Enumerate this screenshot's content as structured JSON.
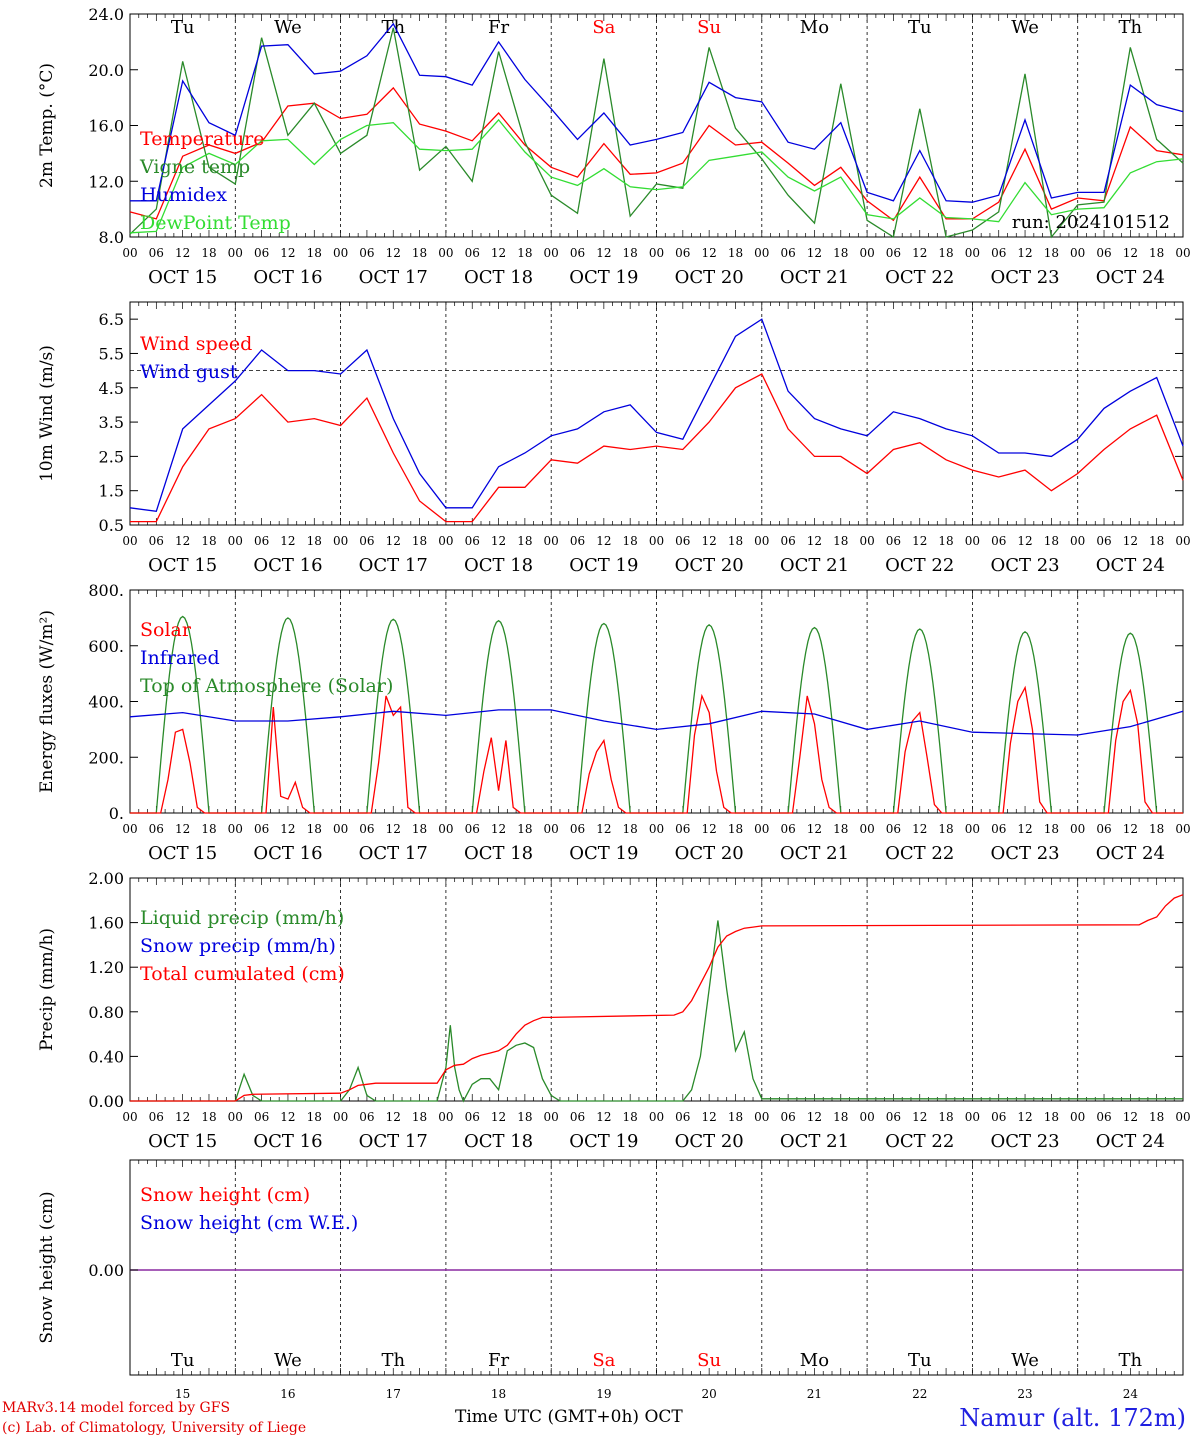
{
  "chart_data": [
    {
      "type": "line",
      "ylabel": "2m Temp. (°C)",
      "ylim": [
        8,
        24
      ],
      "yticks": [
        "8.0",
        "12.0",
        "16.0",
        "20.0",
        "24.0"
      ],
      "weekday_labels": [
        "Tu",
        "We",
        "Th",
        "Fr",
        "Sa",
        "Su",
        "Mo",
        "Tu",
        "We",
        "Th"
      ],
      "annotation": "run: 2024101512",
      "grid": "vertical dotted day separators",
      "legend": "top-left",
      "series": [
        {
          "name": "Temperature",
          "color": "#ff0000",
          "x": [
            0,
            6,
            12,
            18,
            24,
            30,
            36,
            42,
            48,
            54,
            60,
            66,
            72,
            78,
            84,
            90,
            96,
            102,
            108,
            114,
            120,
            126,
            132,
            138,
            144,
            150,
            156,
            162,
            168,
            174,
            180,
            186,
            192,
            198,
            204,
            210,
            216,
            222,
            228,
            234,
            240
          ],
          "values": [
            9.8,
            9.3,
            13.8,
            14.6,
            14.0,
            14.8,
            17.4,
            17.6,
            16.5,
            16.8,
            18.7,
            16.1,
            15.6,
            14.9,
            16.9,
            14.6,
            13.0,
            12.3,
            14.7,
            12.5,
            12.6,
            13.3,
            16.0,
            14.6,
            14.8,
            13.3,
            11.7,
            13.0,
            10.6,
            9.2,
            12.3,
            9.3,
            9.3,
            10.5,
            14.3,
            10.0,
            10.8,
            10.6,
            15.9,
            14.2,
            13.9
          ]
        },
        {
          "name": "Vigne temp",
          "color": "#2a8a2a",
          "x": [
            0,
            6,
            12,
            18,
            24,
            30,
            36,
            42,
            48,
            54,
            60,
            66,
            72,
            78,
            84,
            90,
            96,
            102,
            108,
            114,
            120,
            126,
            132,
            138,
            144,
            150,
            156,
            162,
            168,
            174,
            180,
            186,
            192,
            198,
            204,
            210,
            216,
            222,
            228,
            234,
            240
          ],
          "values": [
            8.2,
            10.0,
            20.6,
            13.0,
            11.8,
            22.3,
            15.3,
            17.6,
            14.0,
            15.3,
            23.0,
            12.8,
            14.5,
            12.0,
            21.3,
            14.8,
            11.0,
            9.7,
            20.8,
            9.5,
            11.8,
            11.5,
            21.6,
            15.8,
            13.6,
            11.0,
            9.0,
            19.0,
            9.2,
            7.0,
            17.2,
            7.0,
            8.5,
            9.8,
            19.7,
            7.8,
            10.3,
            10.5,
            21.6,
            15.0,
            13.3
          ]
        },
        {
          "name": "Humidex",
          "color": "#0000dd",
          "x": [
            0,
            6,
            12,
            18,
            24,
            30,
            36,
            42,
            48,
            54,
            60,
            66,
            72,
            78,
            84,
            90,
            96,
            102,
            108,
            114,
            120,
            126,
            132,
            138,
            144,
            150,
            156,
            162,
            168,
            174,
            180,
            186,
            192,
            198,
            204,
            210,
            216,
            222,
            228,
            234,
            240
          ],
          "values": [
            10.6,
            10.6,
            19.2,
            16.2,
            15.3,
            21.7,
            21.8,
            19.7,
            19.9,
            21.0,
            23.3,
            19.6,
            19.5,
            18.9,
            22.0,
            19.3,
            17.2,
            15.0,
            16.9,
            14.6,
            15.0,
            15.5,
            19.1,
            18.0,
            17.7,
            14.8,
            14.3,
            16.2,
            11.2,
            10.6,
            14.2,
            10.6,
            10.5,
            11.0,
            16.4,
            10.8,
            11.2,
            11.2,
            18.9,
            17.5,
            17.0
          ]
        },
        {
          "name": "DewPoint Temp",
          "color": "#33dd33",
          "x": [
            0,
            6,
            12,
            18,
            24,
            30,
            36,
            42,
            48,
            54,
            60,
            66,
            72,
            78,
            84,
            90,
            96,
            102,
            108,
            114,
            120,
            126,
            132,
            138,
            144,
            150,
            156,
            162,
            168,
            174,
            180,
            186,
            192,
            198,
            204,
            210,
            216,
            222,
            228,
            234,
            240
          ],
          "values": [
            8.3,
            8.4,
            13.0,
            14.0,
            13.2,
            14.9,
            15.0,
            13.2,
            15.0,
            16.0,
            16.2,
            14.3,
            14.2,
            14.3,
            16.4,
            14.1,
            12.3,
            11.7,
            12.9,
            11.6,
            11.4,
            11.6,
            13.5,
            13.8,
            14.1,
            12.3,
            11.3,
            12.3,
            9.6,
            9.3,
            10.8,
            9.4,
            9.3,
            9.1,
            11.9,
            9.6,
            10.0,
            10.1,
            12.6,
            13.4,
            13.6
          ]
        }
      ]
    },
    {
      "type": "line",
      "ylabel": "10m Wind (m/s)",
      "ylim": [
        0.5,
        7
      ],
      "yticks": [
        "0.5",
        "1.5",
        "2.5",
        "3.5",
        "4.5",
        "5.5",
        "6.5"
      ],
      "reference_line": 5,
      "legend": "top-left",
      "series": [
        {
          "name": "Wind speed",
          "color": "#ff0000",
          "x": [
            0,
            6,
            12,
            18,
            24,
            30,
            36,
            42,
            48,
            54,
            60,
            66,
            72,
            78,
            84,
            90,
            96,
            102,
            108,
            114,
            120,
            126,
            132,
            138,
            144,
            150,
            156,
            162,
            168,
            174,
            180,
            186,
            192,
            198,
            204,
            210,
            216,
            222,
            228,
            234,
            240
          ],
          "values": [
            0.6,
            0.6,
            2.2,
            3.3,
            3.6,
            4.3,
            3.5,
            3.6,
            3.4,
            4.2,
            2.6,
            1.2,
            0.6,
            0.6,
            1.6,
            1.6,
            2.4,
            2.3,
            2.8,
            2.7,
            2.8,
            2.7,
            3.5,
            4.5,
            4.9,
            3.3,
            2.5,
            2.5,
            2.0,
            2.7,
            2.9,
            2.4,
            2.1,
            1.9,
            2.1,
            1.5,
            2.0,
            2.7,
            3.3,
            3.7,
            1.8
          ]
        },
        {
          "name": "Wind gust",
          "color": "#0000dd",
          "x": [
            0,
            6,
            12,
            18,
            24,
            30,
            36,
            42,
            48,
            54,
            60,
            66,
            72,
            78,
            84,
            90,
            96,
            102,
            108,
            114,
            120,
            126,
            132,
            138,
            144,
            150,
            156,
            162,
            168,
            174,
            180,
            186,
            192,
            198,
            204,
            210,
            216,
            222,
            228,
            234,
            240
          ],
          "values": [
            1.0,
            0.9,
            3.3,
            4.0,
            4.7,
            5.6,
            5.0,
            5.0,
            4.9,
            5.6,
            3.6,
            2.0,
            1.0,
            1.0,
            2.2,
            2.6,
            3.1,
            3.3,
            3.8,
            4.0,
            3.2,
            3.0,
            4.5,
            6.0,
            6.5,
            4.4,
            3.6,
            3.3,
            3.1,
            3.8,
            3.6,
            3.3,
            3.1,
            2.6,
            2.6,
            2.5,
            3.0,
            3.9,
            4.4,
            4.8,
            2.8
          ]
        }
      ]
    },
    {
      "type": "line",
      "ylabel": "Energy fluxes (W/m²)",
      "ylim": [
        0,
        800
      ],
      "yticks": [
        "0.",
        "200.",
        "400.",
        "600.",
        "800."
      ],
      "legend": "top-left",
      "series": [
        {
          "name": "Solar",
          "color": "#ff0000",
          "peaks": [
            {
              "day": 0,
              "values": [
                0,
                120,
                290,
                300,
                180,
                20,
                0
              ]
            },
            {
              "day": 1,
              "values": [
                0,
                380,
                60,
                50,
                110,
                20,
                0
              ]
            },
            {
              "day": 2,
              "values": [
                0,
                180,
                420,
                350,
                380,
                20,
                0
              ]
            },
            {
              "day": 3,
              "values": [
                0,
                150,
                270,
                80,
                260,
                20,
                0
              ]
            },
            {
              "day": 4,
              "values": [
                0,
                140,
                220,
                260,
                120,
                20,
                0
              ]
            },
            {
              "day": 5,
              "values": [
                0,
                280,
                420,
                360,
                150,
                20,
                0
              ]
            },
            {
              "day": 6,
              "values": [
                0,
                200,
                420,
                320,
                120,
                20,
                0
              ]
            },
            {
              "day": 7,
              "values": [
                0,
                220,
                330,
                360,
                200,
                30,
                0
              ]
            },
            {
              "day": 8,
              "values": [
                0,
                250,
                400,
                450,
                300,
                40,
                0
              ]
            },
            {
              "day": 9,
              "values": [
                0,
                260,
                400,
                440,
                320,
                40,
                0
              ]
            }
          ]
        },
        {
          "name": "Infrared",
          "color": "#0000dd",
          "x": [
            0,
            12,
            24,
            36,
            48,
            60,
            72,
            84,
            96,
            108,
            120,
            132,
            144,
            156,
            168,
            180,
            192,
            204,
            216,
            228,
            240
          ],
          "values": [
            345,
            360,
            330,
            330,
            345,
            365,
            350,
            370,
            370,
            330,
            300,
            320,
            365,
            355,
            300,
            330,
            290,
            285,
            280,
            310,
            365
          ]
        },
        {
          "name": "Top of Atmosphere (Solar)",
          "color": "#2a8a2a",
          "peak_values": [
            705,
            700,
            695,
            690,
            680,
            675,
            665,
            660,
            650,
            645
          ]
        }
      ]
    },
    {
      "type": "line",
      "ylabel": "Precip (mm/h)",
      "ylim": [
        0,
        2
      ],
      "yticks": [
        "0.00",
        "0.40",
        "0.80",
        "1.20",
        "1.60",
        "2.00"
      ],
      "legend": "top-left",
      "series": [
        {
          "name": "Liquid precip (mm/h)",
          "color": "#2a8a2a",
          "x": [
            0,
            24,
            26,
            28,
            30,
            48,
            50,
            52,
            54,
            56,
            70,
            72,
            73,
            74,
            75,
            76,
            78,
            80,
            82,
            84,
            86,
            88,
            90,
            92,
            94,
            96,
            98,
            110,
            126,
            128,
            130,
            132,
            134,
            136,
            138,
            140,
            142,
            144,
            240
          ],
          "values": [
            0,
            0,
            0.24,
            0.05,
            0,
            0,
            0.1,
            0.3,
            0.05,
            0,
            0,
            0.3,
            0.68,
            0.3,
            0.1,
            0,
            0.15,
            0.2,
            0.2,
            0.1,
            0.45,
            0.5,
            0.52,
            0.48,
            0.2,
            0.05,
            0,
            0,
            0,
            0.1,
            0.4,
            1.0,
            1.62,
            1.0,
            0.45,
            0.62,
            0.2,
            0.02,
            0.02
          ]
        },
        {
          "name": "Snow precip (mm/h)",
          "color": "#0000dd",
          "values": [
            0
          ]
        },
        {
          "name": "Total cumulated (cm)",
          "color": "#ff0000",
          "x": [
            0,
            24,
            26,
            28,
            48,
            50,
            52,
            54,
            56,
            70,
            72,
            74,
            76,
            78,
            80,
            82,
            84,
            86,
            88,
            90,
            92,
            94,
            96,
            124,
            126,
            128,
            130,
            132,
            134,
            136,
            138,
            140,
            142,
            144,
            230,
            232,
            234,
            236,
            238,
            240
          ],
          "values": [
            0,
            0,
            0.05,
            0.06,
            0.07,
            0.1,
            0.14,
            0.15,
            0.16,
            0.16,
            0.28,
            0.32,
            0.33,
            0.38,
            0.41,
            0.43,
            0.45,
            0.5,
            0.6,
            0.68,
            0.72,
            0.75,
            0.75,
            0.77,
            0.8,
            0.9,
            1.05,
            1.2,
            1.38,
            1.48,
            1.52,
            1.55,
            1.56,
            1.57,
            1.58,
            1.62,
            1.65,
            1.75,
            1.82,
            1.85
          ]
        }
      ]
    },
    {
      "type": "line",
      "ylabel": "Snow height (cm)",
      "yticks": [
        "0.00"
      ],
      "legend": "top-left",
      "series": [
        {
          "name": "Snow height (cm)",
          "color": "#ff0000",
          "values": [
            0
          ]
        },
        {
          "name": "Snow height (cm W.E.)",
          "color": "#0000dd",
          "values": [
            0
          ]
        }
      ],
      "weekday_labels": [
        "Tu",
        "We",
        "Th",
        "Fr",
        "Sa",
        "Su",
        "Mo",
        "Tu",
        "We",
        "Th"
      ],
      "day_numbers": [
        "15",
        "16",
        "17",
        "18",
        "19",
        "20",
        "21",
        "22",
        "23",
        "24"
      ]
    }
  ],
  "axis": {
    "hour_labels": [
      "00",
      "06",
      "12",
      "18"
    ],
    "final_hour_label": "00",
    "date_labels": [
      "OCT 15",
      "OCT 16",
      "OCT 17",
      "OCT 18",
      "OCT 19",
      "OCT 20",
      "OCT 21",
      "OCT 22",
      "OCT 23",
      "OCT 24"
    ],
    "xtitle": "Time UTC (GMT+0h) OCT"
  },
  "weekend_color": "#ff0000",
  "credit": {
    "line1": "MARv3.14 model forced by GFS",
    "line2": "(c) Lab. of Climatology, University of Liege"
  },
  "station": "Namur (alt. 172m)"
}
